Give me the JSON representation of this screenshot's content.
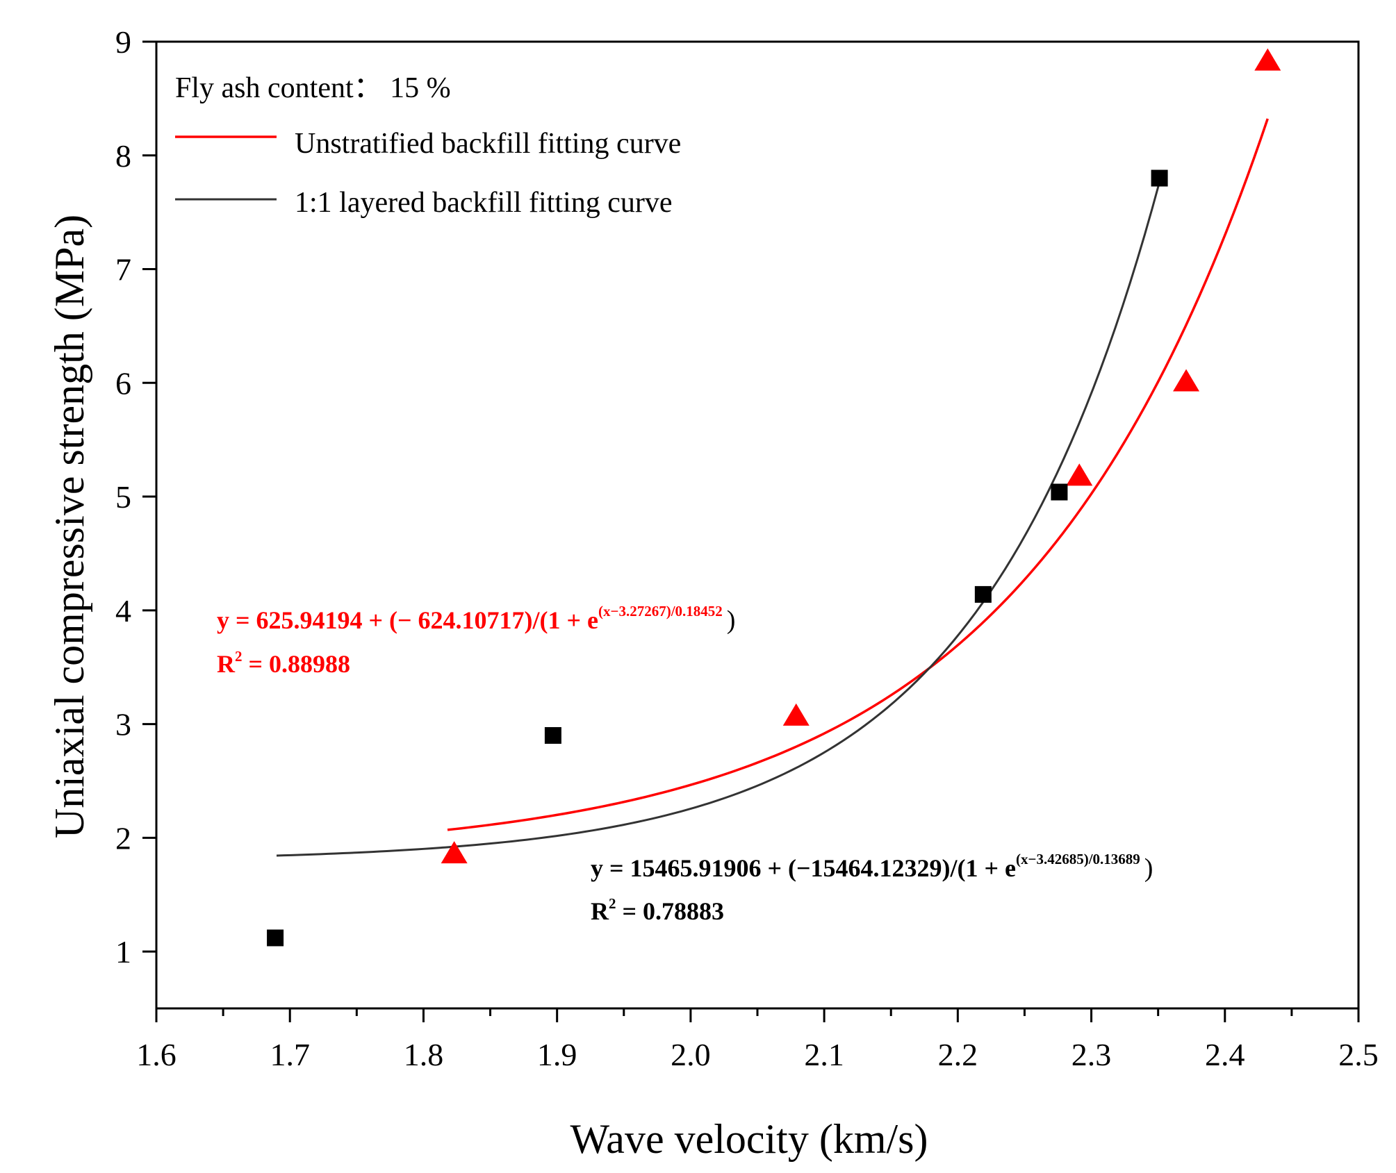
{
  "chart_data": {
    "type": "scatter",
    "xlabel": "Wave velocity (km/s)",
    "ylabel": "Uniaxial compressive strength (MPa)",
    "xlim": [
      1.6,
      2.5
    ],
    "ylim": [
      0.5,
      9.0
    ],
    "x_ticks": [
      "1.6",
      "1.7",
      "1.8",
      "1.9",
      "2.0",
      "2.1",
      "2.2",
      "2.3",
      "2.4",
      "2.5"
    ],
    "y_ticks": [
      "1",
      "2",
      "3",
      "4",
      "5",
      "6",
      "7",
      "8",
      "9"
    ],
    "legend": {
      "title": "Fly ash content： 15 %",
      "entries": [
        {
          "label": "Unstratified backfill fitting curve",
          "color": "#ff0000"
        },
        {
          "label": "1:1 layered backfill fitting curve",
          "color": "#333333"
        }
      ],
      "position": "top-left"
    },
    "series": [
      {
        "name": "Unstratified backfill",
        "marker": "triangle",
        "color": "#ff0000",
        "x": [
          1.823,
          2.079,
          2.291,
          2.371,
          2.432
        ],
        "y": [
          1.85,
          3.06,
          5.17,
          6.0,
          8.82
        ],
        "fit": {
          "A1": 625.94194,
          "A2": -624.10717,
          "x0": 3.27267,
          "dx": 0.18452,
          "x_range": [
            1.818,
            2.432
          ]
        }
      },
      {
        "name": "1:1 layered backfill",
        "marker": "square",
        "color": "#000000",
        "curve_color": "#333333",
        "x": [
          1.689,
          1.897,
          2.219,
          2.276,
          2.351
        ],
        "y": [
          1.12,
          2.9,
          4.14,
          5.04,
          7.8
        ],
        "fit": {
          "A1": 15465.91906,
          "A2": -15464.12329,
          "x0": 3.42685,
          "dx": 0.13689,
          "x_range": [
            1.69,
            2.351
          ]
        }
      }
    ],
    "annotations": [
      {
        "color": "#ff0000",
        "eq_main": "y = 625.94194 + (− 624.10717)/(1 + e",
        "eq_exp": "(x−3.27267)/0.18452",
        "eq_close": ")",
        "r2_label": "R",
        "r2_sup": "2",
        "r2_value": " = 0.88988"
      },
      {
        "color": "#000000",
        "eq_main": "y = 15465.91906 + (−15464.12329)/(1 + e",
        "eq_exp": "(x−3.42685)/0.13689",
        "eq_close": ")",
        "r2_label": "R",
        "r2_sup": "2",
        "r2_value": " = 0.78883"
      }
    ]
  }
}
